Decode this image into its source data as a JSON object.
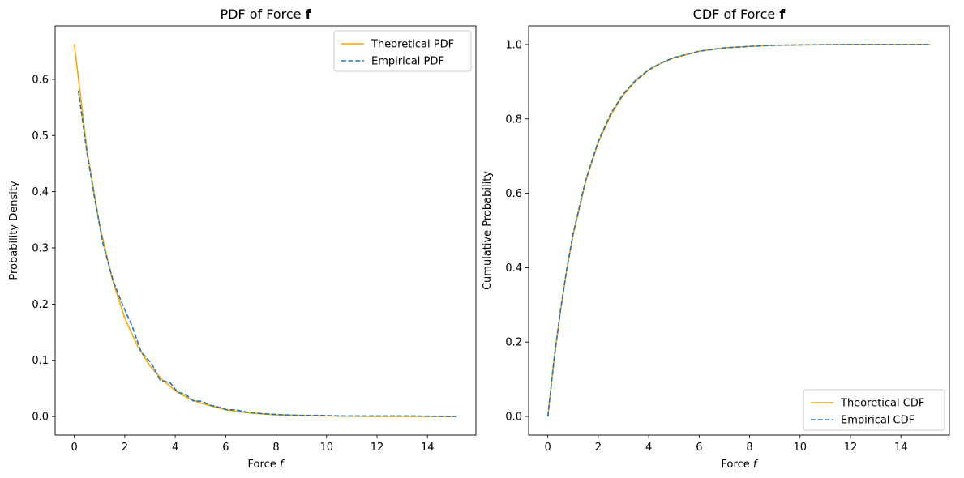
{
  "chart_data": [
    {
      "type": "line",
      "title": "PDF of Force",
      "title_symbol": "f",
      "xlabel": "Force",
      "xlabel_symbol": "f",
      "ylabel": "Probability Density",
      "xlim": [
        -0.76,
        15.92
      ],
      "ylim": [
        -0.033,
        0.695
      ],
      "xticks": [
        0,
        2,
        4,
        6,
        8,
        10,
        12,
        14
      ],
      "yticks": [
        0.0,
        0.1,
        0.2,
        0.3,
        0.4,
        0.5,
        0.6
      ],
      "xtick_labels": [
        "0",
        "2",
        "4",
        "6",
        "8",
        "10",
        "12",
        "14"
      ],
      "ytick_labels": [
        "0.0",
        "0.1",
        "0.2",
        "0.3",
        "0.4",
        "0.5",
        "0.6"
      ],
      "legend_position": "upper-right",
      "series": [
        {
          "name": "Theoretical PDF",
          "color": "#ffa500",
          "style": "solid",
          "x": [
            0,
            0.5,
            1,
            1.5,
            2,
            2.5,
            3,
            3.5,
            4,
            4.5,
            5,
            6,
            7,
            8,
            9,
            10,
            11,
            12,
            13,
            14,
            15.16
          ],
          "y": [
            0.663,
            0.475,
            0.341,
            0.245,
            0.175,
            0.126,
            0.09,
            0.065,
            0.046,
            0.033,
            0.024,
            0.012,
            0.006,
            0.003,
            0.002,
            0.001,
            0.0005,
            0.0003,
            0.0002,
            0.0001,
            0.0
          ]
        },
        {
          "name": "Empirical PDF",
          "color": "#1f77b4",
          "style": "dashed",
          "x": [
            0.16,
            0.5,
            0.8,
            1.15,
            1.55,
            1.95,
            2.3,
            2.65,
            3.05,
            3.4,
            3.8,
            4.1,
            4.4,
            4.7,
            5.05,
            5.4,
            5.7,
            6.05,
            6.4,
            6.8,
            7.5,
            8.3,
            9.0,
            9.8,
            10.5,
            11.3,
            12.2,
            13.2,
            14.2,
            15.16
          ],
          "y": [
            0.58,
            0.47,
            0.39,
            0.305,
            0.24,
            0.195,
            0.16,
            0.115,
            0.095,
            0.065,
            0.06,
            0.043,
            0.04,
            0.028,
            0.027,
            0.02,
            0.017,
            0.012,
            0.012,
            0.008,
            0.005,
            0.003,
            0.002,
            0.002,
            0.001,
            0.001,
            0.001,
            0.001,
            0.0005,
            0.0
          ]
        }
      ]
    },
    {
      "type": "line",
      "title": "CDF of Force",
      "title_symbol": "f",
      "xlabel": "Force",
      "xlabel_symbol": "f",
      "ylabel": "Cumulative Probability",
      "xlim": [
        -0.76,
        15.92
      ],
      "ylim": [
        -0.05,
        1.05
      ],
      "xticks": [
        0,
        2,
        4,
        6,
        8,
        10,
        12,
        14
      ],
      "yticks": [
        0.0,
        0.2,
        0.4,
        0.6,
        0.8,
        1.0
      ],
      "xtick_labels": [
        "0",
        "2",
        "4",
        "6",
        "8",
        "10",
        "12",
        "14"
      ],
      "ytick_labels": [
        "0.0",
        "0.2",
        "0.4",
        "0.6",
        "0.8",
        "1.0"
      ],
      "legend_position": "lower-right",
      "series": [
        {
          "name": "Theoretical CDF",
          "color": "#ffa500",
          "style": "solid",
          "x": [
            0,
            0.25,
            0.5,
            0.75,
            1,
            1.5,
            2,
            2.5,
            3,
            3.5,
            4,
            4.5,
            5,
            6,
            7,
            8,
            9,
            10,
            12,
            14,
            15.16
          ],
          "y": [
            0.0,
            0.153,
            0.283,
            0.393,
            0.486,
            0.632,
            0.736,
            0.811,
            0.865,
            0.903,
            0.931,
            0.95,
            0.964,
            0.982,
            0.991,
            0.995,
            0.998,
            0.999,
            1.0,
            1.0,
            1.0
          ]
        },
        {
          "name": "Empirical CDF",
          "color": "#1f77b4",
          "style": "dashed",
          "x": [
            0,
            0.25,
            0.5,
            0.75,
            1,
            1.5,
            2,
            2.5,
            3,
            3.5,
            4,
            4.5,
            5,
            6,
            7,
            8,
            9,
            10,
            12,
            14,
            15.16
          ],
          "y": [
            0.0,
            0.155,
            0.285,
            0.395,
            0.49,
            0.635,
            0.74,
            0.815,
            0.868,
            0.905,
            0.932,
            0.951,
            0.965,
            0.982,
            0.991,
            0.995,
            0.998,
            0.999,
            1.0,
            1.0,
            1.0
          ]
        }
      ]
    }
  ]
}
